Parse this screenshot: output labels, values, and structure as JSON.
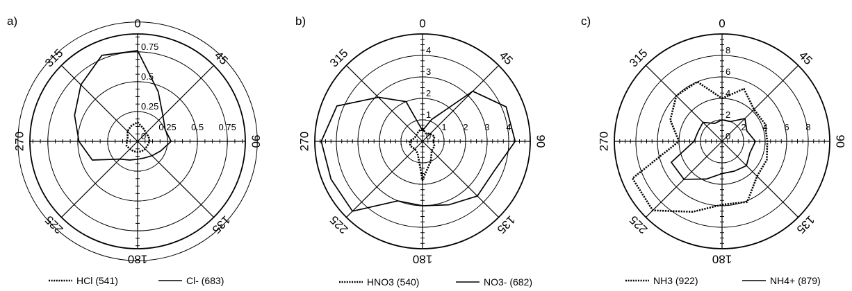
{
  "chart_data": [
    {
      "type": "radar",
      "panel_label": "a)",
      "direction_labels": [
        "0",
        "45",
        "90",
        "135",
        "180",
        "225",
        "270",
        "315"
      ],
      "radial_ticks": [
        "0",
        "0.25",
        "0.5",
        "0.75"
      ],
      "radial_max": 0.9,
      "theta_step_deg": 22.5,
      "series": [
        {
          "name": "HCl (541)",
          "style": "dotted",
          "values": [
            0.16,
            0.12,
            0.1,
            0.1,
            0.1,
            0.09,
            0.09,
            0.09,
            0.09,
            0.09,
            0.09,
            0.1,
            0.09,
            0.09,
            0.12,
            0.14
          ]
        },
        {
          "name": "Cl- (683)",
          "style": "solid",
          "values": [
            0.76,
            0.45,
            0.3,
            0.25,
            0.28,
            0.21,
            0.17,
            0.15,
            0.15,
            0.17,
            0.21,
            0.41,
            0.49,
            0.57,
            0.67,
            0.78
          ]
        }
      ]
    },
    {
      "type": "radar",
      "panel_label": "b)",
      "direction_labels": [
        "0",
        "45",
        "90",
        "135",
        "180",
        "225",
        "270",
        "315"
      ],
      "radial_ticks": [
        "0",
        "1",
        "2",
        "3",
        "4"
      ],
      "radial_max": 5,
      "theta_step_deg": 22.5,
      "series": [
        {
          "name": "HNO3 (540)",
          "style": "dotted",
          "values": [
            0.6,
            0.4,
            0.5,
            0.6,
            0.5,
            0.6,
            0.6,
            1.0,
            1.8,
            0.6,
            0.5,
            0.6,
            0.6,
            0.4,
            0.4,
            0.5
          ]
        },
        {
          "name": "NO3- (682)",
          "style": "solid",
          "values": [
            0.5,
            1.1,
            3.3,
            4.2,
            4.3,
            3.6,
            3.6,
            3.2,
            3.0,
            3.0,
            4.6,
            4.6,
            4.7,
            4.3,
            2.9,
            2.0
          ]
        }
      ]
    },
    {
      "type": "radar",
      "panel_label": "c)",
      "direction_labels": [
        "0",
        "45",
        "90",
        "135",
        "180",
        "225",
        "270",
        "315"
      ],
      "radial_ticks": [
        "0",
        "2",
        "4",
        "6",
        "8"
      ],
      "radial_max": 10,
      "theta_step_deg": 22.5,
      "series": [
        {
          "name": "NH3 (922)",
          "style": "dotted",
          "values": [
            4.0,
            5.3,
            4.2,
            4.3,
            4.2,
            4.5,
            4.6,
            6.1,
            5.9,
            7.1,
            9.1,
            9.0,
            4.0,
            5.2,
            6.0,
            6.0
          ]
        },
        {
          "name": "NH4+ (879)",
          "style": "solid",
          "values": [
            2.0,
            2.0,
            3.0,
            2.5,
            3.1,
            2.8,
            3.2,
            3.0,
            3.0,
            3.8,
            5.0,
            5.1,
            2.6,
            2.4,
            2.5,
            1.8
          ]
        }
      ]
    }
  ]
}
